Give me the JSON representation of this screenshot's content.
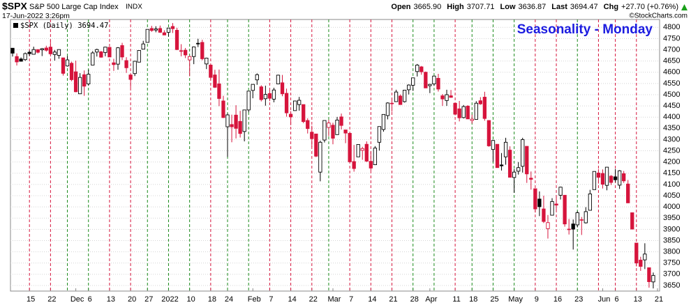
{
  "header": {
    "symbol": "$SPX",
    "name": "S&P 500 Large Cap Index",
    "exchange": "INDX",
    "timestamp": "17-Jun-2022 3:26pm",
    "copyright": "©StockCharts.com",
    "quote": [
      {
        "label": "Open",
        "value": "3665.90"
      },
      {
        "label": "High",
        "value": "3707.71"
      },
      {
        "label": "Low",
        "value": "3636.87"
      },
      {
        "label": "Last",
        "value": "3694.47"
      },
      {
        "label": "Chg",
        "value": "+27.70 (+0.76%)"
      }
    ]
  },
  "chart_data": {
    "type": "candlestick",
    "title": "Seasonality - Monday",
    "legend": {
      "symbol": "$SPX (Daily)",
      "value": "3694.47"
    },
    "open": [
      4707,
      4670,
      4659,
      4656,
      4689,
      4680,
      4701,
      4700,
      4708,
      4712,
      4679,
      4675,
      4664,
      4628,
      4640,
      4602,
      4504,
      4589,
      4548,
      4632,
      4690,
      4691,
      4688,
      4711,
      4642,
      4636,
      4719,
      4652,
      4588,
      4594,
      4645,
      4703,
      4733,
      4795,
      4788,
      4795,
      4776,
      4778,
      4804,
      4787,
      4693,
      4698,
      4655,
      4670,
      4729,
      4733,
      4637,
      4632,
      4588,
      4548,
      4472,
      4357,
      4367,
      4409,
      4381,
      4336,
      4432,
      4519,
      4566,
      4535,
      4482,
      4505,
      4480,
      4548,
      4553,
      4506,
      4413,
      4429,
      4456,
      4456,
      4385,
      4333,
      4325,
      4155,
      4298,
      4354,
      4364,
      4322,
      4401,
      4343,
      4328,
      4202,
      4223,
      4252,
      4279,
      4203,
      4188,
      4288,
      4345,
      4407,
      4462,
      4469,
      4494,
      4469,
      4522,
      4542,
      4603,
      4624,
      4600,
      4540,
      4548,
      4573,
      4495,
      4474,
      4495,
      4462,
      4437,
      4398,
      4449,
      4385,
      4390,
      4473,
      4489,
      4385,
      4256,
      4279,
      4187,
      4223,
      4253,
      4131,
      4159,
      4181,
      4270,
      4128,
      4081,
      4035,
      3991,
      3903,
      3963,
      4013,
      4052,
      4052,
      3900,
      3924,
      3920,
      3943,
      3929,
      3985,
      4077,
      4151,
      4149,
      4096,
      4137,
      4134,
      4097,
      4148,
      4102,
      3974,
      3839,
      3763,
      3764,
      3729,
      3665.9
    ],
    "high": [
      4708,
      4684,
      4666,
      4688,
      4697,
      4714,
      4701,
      4708,
      4718,
      4744,
      4699,
      4702,
      4665,
      4672,
      4647,
      4652,
      4596,
      4608,
      4612,
      4694,
      4705,
      4695,
      4713,
      4711,
      4660,
      4712,
      4731,
      4667,
      4588,
      4651,
      4697,
      4740,
      4791,
      4807,
      4805,
      4808,
      4787,
      4797,
      4819,
      4798,
      4725,
      4708,
      4673,
      4715,
      4749,
      4745,
      4665,
      4632,
      4611,
      4612,
      4495,
      4417,
      4411,
      4453,
      4428,
      4432,
      4517,
      4546,
      4595,
      4542,
      4540,
      4521,
      4531,
      4589,
      4588,
      4527,
      4427,
      4472,
      4490,
      4456,
      4395,
      4362,
      4326,
      4295,
      4385,
      4388,
      4375,
      4401,
      4416,
      4343,
      4328,
      4276,
      4277,
      4268,
      4292,
      4247,
      4271,
      4358,
      4412,
      4466,
      4482,
      4522,
      4501,
      4521,
      4546,
      4575,
      4637,
      4628,
      4603,
      4548,
      4583,
      4593,
      4503,
      4522,
      4521,
      4464,
      4472,
      4454,
      4453,
      4411,
      4471,
      4489,
      4513,
      4386,
      4299,
      4279,
      4240,
      4308,
      4270,
      4169,
      4200,
      4308,
      4270,
      4158,
      4082,
      4069,
      4050,
      3964,
      4039,
      4047,
      4090,
      4052,
      3946,
      3944,
      3981,
      3955,
      3999,
      4076,
      4158,
      4168,
      4167,
      4177,
      4142,
      4169,
      4164,
      4160,
      4120,
      3974,
      3839,
      3778,
      3838,
      3729,
      3707.71
    ],
    "low": [
      4670,
      4630,
      4648,
      4651,
      4673,
      4680,
      4684,
      4672,
      4692,
      4680,
      4652,
      4660,
      4585,
      4625,
      4560,
      4511,
      4504,
      4495,
      4541,
      4632,
      4670,
      4665,
      4671,
      4667,
      4606,
      4611,
      4654,
      4597,
      4531,
      4583,
      4644,
      4703,
      4733,
      4780,
      4778,
      4775,
      4766,
      4759,
      4775,
      4699,
      4671,
      4663,
      4582,
      4636,
      4712,
      4653,
      4614,
      4569,
      4530,
      4449,
      4396,
      4223,
      4288,
      4305,
      4309,
      4292,
      4422,
      4484,
      4544,
      4470,
      4451,
      4471,
      4466,
      4548,
      4493,
      4402,
      4364,
      4429,
      4429,
      4373,
      4327,
      4267,
      4222,
      4114,
      4287,
      4315,
      4279,
      4322,
      4345,
      4284,
      4199,
      4157,
      4223,
      4210,
      4200,
      4161,
      4187,
      4251,
      4335,
      4390,
      4424,
      4469,
      4456,
      4465,
      4501,
      4517,
      4581,
      4589,
      4531,
      4507,
      4539,
      4514,
      4450,
      4450,
      4487,
      4408,
      4381,
      4394,
      4392,
      4371,
      4390,
      4455,
      4384,
      4268,
      4201,
      4175,
      4162,
      4188,
      4132,
      4063,
      4144,
      4153,
      4107,
      4077,
      3975,
      3959,
      3928,
      3859,
      3963,
      3984,
      4033,
      3912,
      3877,
      3810,
      3909,
      3875,
      3926,
      3984,
      4077,
      4104,
      4082,
      4074,
      4098,
      4110,
      4080,
      4107,
      4017,
      3900,
      3735,
      3715,
      3723,
      3640,
      3636.87
    ],
    "close": [
      4685,
      4646,
      4649,
      4683,
      4683,
      4701,
      4689,
      4705,
      4698,
      4682,
      4690,
      4701,
      4595,
      4655,
      4567,
      4513,
      4577,
      4538,
      4591,
      4686,
      4701,
      4667,
      4712,
      4668,
      4634,
      4709,
      4668,
      4620,
      4568,
      4649,
      4697,
      4726,
      4791,
      4786,
      4793,
      4778,
      4766,
      4797,
      4794,
      4701,
      4696,
      4677,
      4670,
      4713,
      4726,
      4660,
      4663,
      4577,
      4533,
      4483,
      4398,
      4410,
      4357,
      4350,
      4327,
      4432,
      4516,
      4546,
      4589,
      4478,
      4501,
      4484,
      4521,
      4587,
      4504,
      4419,
      4401,
      4472,
      4475,
      4380,
      4349,
      4304,
      4226,
      4288,
      4385,
      4374,
      4306,
      4387,
      4363,
      4329,
      4201,
      4171,
      4278,
      4260,
      4204,
      4173,
      4262,
      4358,
      4412,
      4463,
      4461,
      4512,
      4456,
      4520,
      4543,
      4575,
      4632,
      4602,
      4530,
      4546,
      4583,
      4525,
      4481,
      4500,
      4488,
      4413,
      4397,
      4447,
      4392,
      4391,
      4462,
      4459,
      4394,
      4272,
      4296,
      4175,
      4183,
      4288,
      4132,
      4155,
      4175,
      4300,
      4147,
      4123,
      3991,
      4001,
      3935,
      3930,
      4024,
      4008,
      4088,
      3924,
      3901,
      3901,
      3974,
      3941,
      3979,
      4058,
      4158,
      4132,
      4101,
      4177,
      4109,
      4121,
      4161,
      4116,
      4018,
      3901,
      3750,
      3735,
      3790,
      3666.77,
      3694.47
    ],
    "candle_colors": {
      "up": "#000000",
      "down": "#d6143c"
    },
    "week_starts": [
      4,
      9,
      13,
      18,
      23,
      28,
      32,
      37,
      42,
      47,
      51,
      56,
      61,
      66,
      71,
      75,
      80,
      85,
      90,
      95,
      100,
      105,
      109,
      114,
      119,
      124,
      129,
      134,
      139,
      143,
      148
    ],
    "week_line_colors": {
      "up": "#1a8a1a",
      "down": "#d6143c"
    },
    "xlim": [
      -0.5,
      153.5
    ],
    "xticks": [
      {
        "value": 4,
        "label": "15"
      },
      {
        "value": 9,
        "label": "22"
      },
      {
        "value": 15,
        "label": "Dec"
      },
      {
        "value": 18,
        "label": "6"
      },
      {
        "value": 23,
        "label": "13"
      },
      {
        "value": 28,
        "label": "20"
      },
      {
        "value": 32,
        "label": "27"
      },
      {
        "value": 37,
        "label": "2022"
      },
      {
        "value": 42,
        "label": "10"
      },
      {
        "value": 47,
        "label": "18"
      },
      {
        "value": 51,
        "label": "24"
      },
      {
        "value": 57,
        "label": "Feb"
      },
      {
        "value": 61,
        "label": "7"
      },
      {
        "value": 66,
        "label": "14"
      },
      {
        "value": 71,
        "label": "22"
      },
      {
        "value": 76,
        "label": "Mar"
      },
      {
        "value": 80,
        "label": "7"
      },
      {
        "value": 85,
        "label": "14"
      },
      {
        "value": 90,
        "label": "21"
      },
      {
        "value": 95,
        "label": "28"
      },
      {
        "value": 99,
        "label": "Apr"
      },
      {
        "value": 105,
        "label": "11"
      },
      {
        "value": 109,
        "label": "18"
      },
      {
        "value": 114,
        "label": "25"
      },
      {
        "value": 119,
        "label": "May"
      },
      {
        "value": 124,
        "label": "9"
      },
      {
        "value": 129,
        "label": "16"
      },
      {
        "value": 134,
        "label": "23"
      },
      {
        "value": 140,
        "label": "Jun"
      },
      {
        "value": 143,
        "label": "6"
      },
      {
        "value": 148,
        "label": "13"
      },
      {
        "value": 153,
        "label": "21"
      }
    ],
    "ylim": [
      3625,
      4835
    ],
    "yticks": [
      3650,
      3700,
      3750,
      3800,
      3850,
      3900,
      3950,
      4000,
      4050,
      4100,
      4150,
      4200,
      4250,
      4300,
      4350,
      4400,
      4450,
      4500,
      4550,
      4600,
      4650,
      4700,
      4750,
      4800
    ],
    "grid": true
  }
}
